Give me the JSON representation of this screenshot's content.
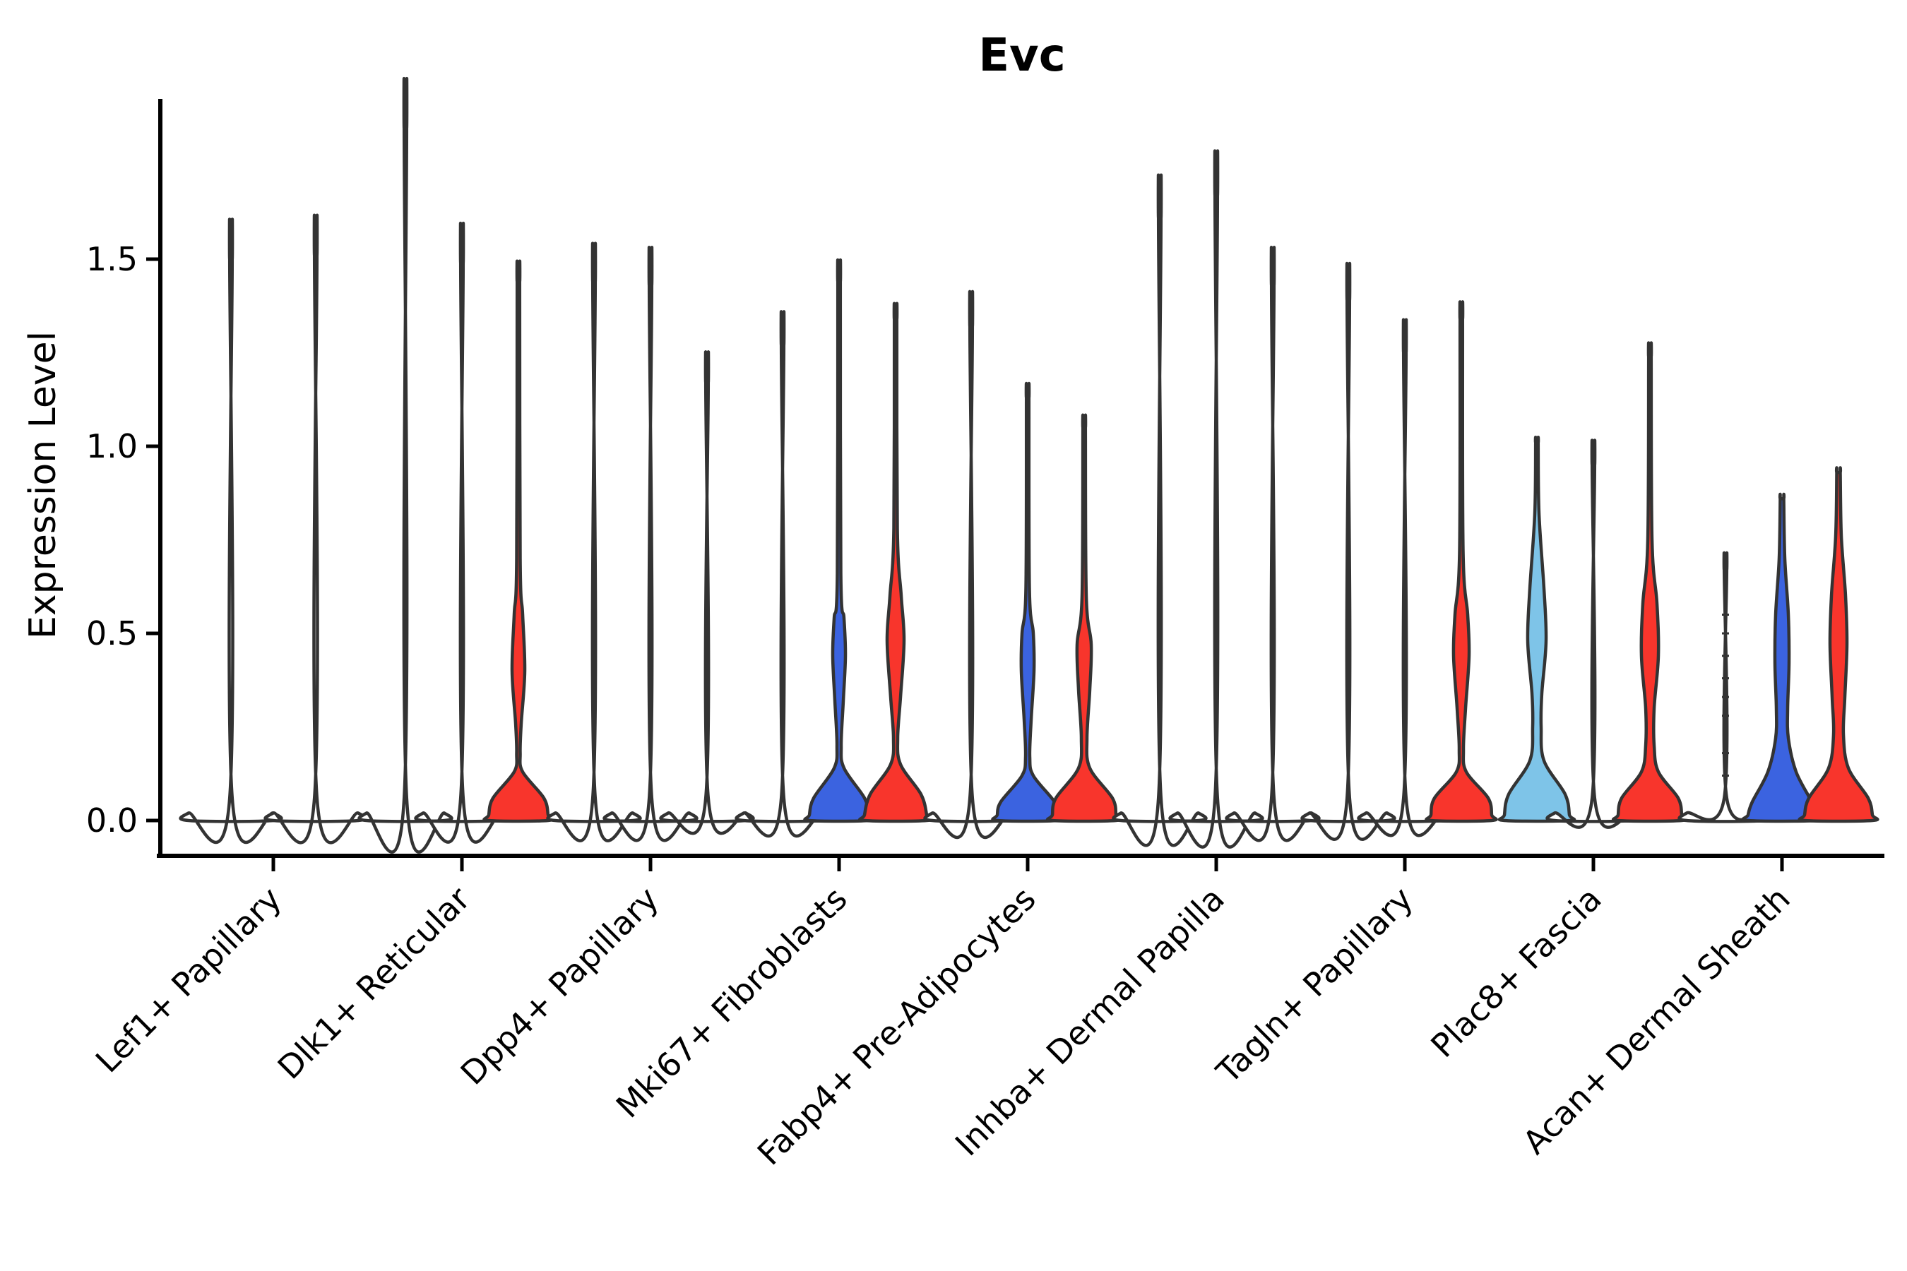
{
  "title": "Evc",
  "axes": {
    "ylabel": "Expression Level",
    "ytick_labels": [
      "0.0",
      "0.5",
      "1.0",
      "1.5"
    ],
    "ytick_values": [
      0.0,
      0.5,
      1.0,
      1.5
    ]
  },
  "colors": {
    "outline": "#333333",
    "red": "#f8352c",
    "blue": "#3b63e0",
    "lightblue": "#7ec4e8",
    "none": "#ffffff",
    "axis": "#000000"
  },
  "chart_data": {
    "type": "violin",
    "title": "Evc",
    "xlabel": "",
    "ylabel": "Expression Level",
    "ylim": [
      0,
      1.93
    ],
    "yticks": [
      0.0,
      0.5,
      1.0,
      1.5
    ],
    "grid": false,
    "legend": "none",
    "categories": [
      "Lef1+ Papillary",
      "Dlk1+ Reticular",
      "Dpp4+ Papillary",
      "Mki67+ Fibroblasts",
      "Fabp4+ Pre-Adipocytes",
      "Inhba+ Dermal Papilla",
      "Tagln+ Papillary",
      "Plac8+ Fascia",
      "Acan+ Dermal Sheath"
    ],
    "split_conditions": [
      {
        "slot": 0,
        "color_key": "lightblue",
        "hex": "#7ec4e8"
      },
      {
        "slot": 1,
        "color_key": "blue",
        "hex": "#3b63e0"
      },
      {
        "slot": 2,
        "color_key": "red",
        "hex": "#f8352c"
      }
    ],
    "note": "Violins that appear as thin vertical lines have near-zero density above 0; most expression mass sits at 0 (flat base). 'max' is the top of each violin in expression units.",
    "violins": [
      {
        "category": "Lef1+ Papillary",
        "slot": 0,
        "offset": -60,
        "color": "none",
        "max": 1.5,
        "shape": "line"
      },
      {
        "category": "Lef1+ Papillary",
        "slot": 2,
        "offset": 60,
        "color": "none",
        "max": 1.51,
        "shape": "line"
      },
      {
        "category": "Dlk1+ Reticular",
        "slot": 0,
        "offset": -80,
        "color": "none",
        "max": 1.85,
        "shape": "line"
      },
      {
        "category": "Dlk1+ Reticular",
        "slot": 1,
        "offset": 0,
        "color": "none",
        "max": 1.49,
        "shape": "line"
      },
      {
        "category": "Dlk1+ Reticular",
        "slot": 2,
        "offset": 80,
        "color": "red",
        "max": 1.44,
        "shape": "bulge",
        "profile": [
          [
            1.44,
            1.8
          ],
          [
            1.44,
            1.8
          ],
          [
            0.7,
            2.5
          ],
          [
            0.55,
            6
          ],
          [
            0.4,
            9
          ],
          [
            0.26,
            4
          ],
          [
            0.18,
            2.5
          ],
          [
            0.13,
            6
          ],
          [
            0.06,
            36
          ],
          [
            0.015,
            42
          ],
          [
            0,
            42
          ]
        ]
      },
      {
        "category": "Dpp4+ Papillary",
        "slot": 0,
        "offset": -80,
        "color": "none",
        "max": 1.44,
        "shape": "line"
      },
      {
        "category": "Dpp4+ Papillary",
        "slot": 1,
        "offset": 0,
        "color": "none",
        "max": 1.43,
        "shape": "line"
      },
      {
        "category": "Dpp4+ Papillary",
        "slot": 2,
        "offset": 80,
        "color": "none",
        "max": 1.17,
        "shape": "line"
      },
      {
        "category": "Mki67+ Fibroblasts",
        "slot": 0,
        "offset": -80,
        "color": "none",
        "max": 1.27,
        "shape": "line"
      },
      {
        "category": "Mki67+ Fibroblasts",
        "slot": 1,
        "offset": 0,
        "color": "blue",
        "max": 1.44,
        "shape": "bulge",
        "profile": [
          [
            1.44,
            1.8
          ],
          [
            1.44,
            1.8
          ],
          [
            0.66,
            2.5
          ],
          [
            0.54,
            7
          ],
          [
            0.44,
            9
          ],
          [
            0.32,
            6
          ],
          [
            0.2,
            3
          ],
          [
            0.14,
            7
          ],
          [
            0.06,
            36
          ],
          [
            0.015,
            42
          ],
          [
            0,
            42
          ]
        ]
      },
      {
        "category": "Mki67+ Fibroblasts",
        "slot": 2,
        "offset": 80,
        "color": "red",
        "max": 1.34,
        "shape": "bulge",
        "profile": [
          [
            1.34,
            1.8
          ],
          [
            1.34,
            1.8
          ],
          [
            0.78,
            2.5
          ],
          [
            0.6,
            8
          ],
          [
            0.48,
            12
          ],
          [
            0.33,
            7
          ],
          [
            0.22,
            3
          ],
          [
            0.15,
            7
          ],
          [
            0.07,
            36
          ],
          [
            0.015,
            44
          ],
          [
            0,
            44
          ]
        ]
      },
      {
        "category": "Fabp4+ Pre-Adipocytes",
        "slot": 0,
        "offset": -80,
        "color": "none",
        "max": 1.32,
        "shape": "line"
      },
      {
        "category": "Fabp4+ Pre-Adipocytes",
        "slot": 1,
        "offset": 0,
        "color": "blue",
        "max": 1.13,
        "shape": "bulge",
        "profile": [
          [
            1.13,
            1.8
          ],
          [
            1.13,
            1.8
          ],
          [
            0.62,
            2.5
          ],
          [
            0.5,
            8
          ],
          [
            0.4,
            9
          ],
          [
            0.27,
            5
          ],
          [
            0.17,
            3
          ],
          [
            0.12,
            8
          ],
          [
            0.05,
            38
          ],
          [
            0.015,
            43
          ],
          [
            0,
            43
          ]
        ]
      },
      {
        "category": "Fabp4+ Pre-Adipocytes",
        "slot": 2,
        "offset": 80,
        "color": "red",
        "max": 1.05,
        "shape": "bulge",
        "profile": [
          [
            1.05,
            1.8
          ],
          [
            1.05,
            1.8
          ],
          [
            0.6,
            3
          ],
          [
            0.47,
            10
          ],
          [
            0.35,
            8
          ],
          [
            0.22,
            4
          ],
          [
            0.14,
            8
          ],
          [
            0.06,
            40
          ],
          [
            0.015,
            45
          ],
          [
            0,
            45
          ]
        ]
      },
      {
        "category": "Inhba+ Dermal Papilla",
        "slot": 0,
        "offset": -80,
        "color": "none",
        "max": 1.61,
        "shape": "line"
      },
      {
        "category": "Inhba+ Dermal Papilla",
        "slot": 1,
        "offset": 0,
        "color": "none",
        "max": 1.67,
        "shape": "line"
      },
      {
        "category": "Inhba+ Dermal Papilla",
        "slot": 2,
        "offset": 80,
        "color": "none",
        "max": 1.43,
        "shape": "line"
      },
      {
        "category": "Tagln+ Papillary",
        "slot": 0,
        "offset": -80,
        "color": "none",
        "max": 1.39,
        "shape": "line"
      },
      {
        "category": "Tagln+ Papillary",
        "slot": 1,
        "offset": 0,
        "color": "none",
        "max": 1.25,
        "shape": "line"
      },
      {
        "category": "Tagln+ Papillary",
        "slot": 2,
        "offset": 80,
        "color": "red",
        "max": 1.34,
        "shape": "bulge",
        "profile": [
          [
            1.34,
            1.8
          ],
          [
            1.34,
            1.8
          ],
          [
            0.72,
            2.5
          ],
          [
            0.55,
            9
          ],
          [
            0.44,
            11
          ],
          [
            0.3,
            6
          ],
          [
            0.19,
            3
          ],
          [
            0.13,
            7
          ],
          [
            0.06,
            38
          ],
          [
            0.015,
            43
          ],
          [
            0,
            43
          ]
        ]
      },
      {
        "category": "Plac8+ Fascia",
        "slot": 0,
        "offset": -80,
        "color": "lightblue",
        "max": 1.01,
        "shape": "bulge",
        "profile": [
          [
            1.01,
            1.8
          ],
          [
            1.01,
            1.8
          ],
          [
            0.82,
            3
          ],
          [
            0.62,
            10
          ],
          [
            0.48,
            13
          ],
          [
            0.34,
            7
          ],
          [
            0.25,
            6
          ],
          [
            0.16,
            10
          ],
          [
            0.07,
            40
          ],
          [
            0.015,
            46
          ],
          [
            0,
            46
          ]
        ]
      },
      {
        "category": "Plac8+ Fascia",
        "slot": 1,
        "offset": 0,
        "color": "none",
        "max": 0.95,
        "shape": "line"
      },
      {
        "category": "Plac8+ Fascia",
        "slot": 2,
        "offset": 80,
        "color": "red",
        "max": 1.24,
        "shape": "bulge",
        "profile": [
          [
            1.24,
            1.8
          ],
          [
            1.24,
            1.8
          ],
          [
            0.75,
            3
          ],
          [
            0.58,
            10
          ],
          [
            0.44,
            12
          ],
          [
            0.3,
            6
          ],
          [
            0.2,
            6
          ],
          [
            0.13,
            12
          ],
          [
            0.06,
            40
          ],
          [
            0.015,
            45
          ],
          [
            0,
            45
          ]
        ]
      },
      {
        "category": "Acan+ Dermal Sheath",
        "slot": 0,
        "offset": -80,
        "color": "none",
        "max": 0.67,
        "shape": "line",
        "tick_marks": [
          0.55,
          0.5,
          0.44,
          0.38,
          0.33,
          0.28,
          0.18,
          0.12
        ]
      },
      {
        "category": "Acan+ Dermal Sheath",
        "slot": 1,
        "offset": 0,
        "color": "blue",
        "max": 0.86,
        "shape": "bulge",
        "profile": [
          [
            0.86,
            2.5
          ],
          [
            0.86,
            2.5
          ],
          [
            0.7,
            4
          ],
          [
            0.55,
            9
          ],
          [
            0.42,
            10
          ],
          [
            0.3,
            8
          ],
          [
            0.22,
            9
          ],
          [
            0.13,
            20
          ],
          [
            0.05,
            42
          ],
          [
            0.015,
            48
          ],
          [
            0,
            48
          ]
        ]
      },
      {
        "category": "Acan+ Dermal Sheath",
        "slot": 2,
        "offset": 80,
        "color": "red",
        "max": 0.93,
        "shape": "bulge",
        "profile": [
          [
            0.93,
            2.5
          ],
          [
            0.93,
            2.5
          ],
          [
            0.76,
            4
          ],
          [
            0.6,
            10
          ],
          [
            0.47,
            12
          ],
          [
            0.33,
            9
          ],
          [
            0.23,
            7
          ],
          [
            0.14,
            14
          ],
          [
            0.06,
            42
          ],
          [
            0.015,
            48
          ],
          [
            0,
            48
          ]
        ]
      }
    ]
  }
}
